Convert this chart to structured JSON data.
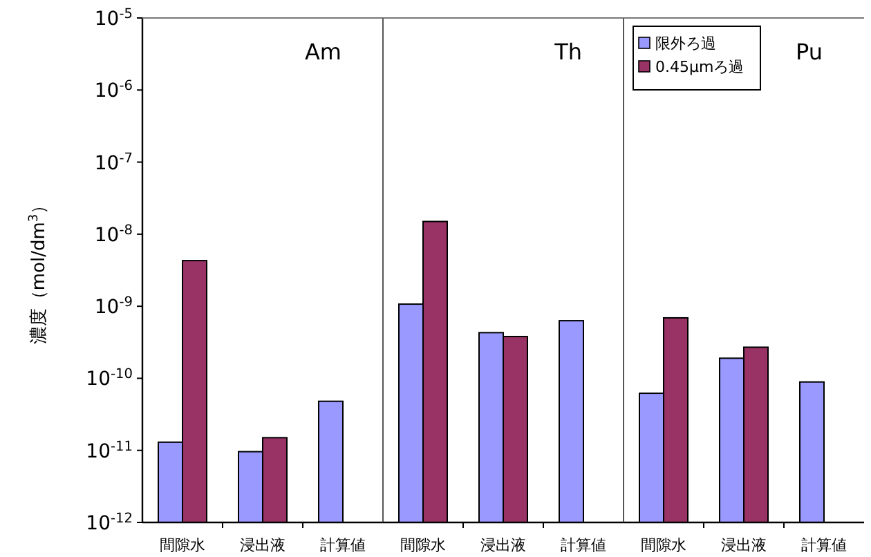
{
  "chart_data": [
    {
      "type": "bar",
      "title": "Am",
      "categories": [
        "間隙水",
        "浸出液",
        "計算値"
      ],
      "ylabel": "濃度（mol/dm$^{3}$）",
      "log": true,
      "ylim": [
        1e-12,
        1e-05
      ],
      "yticks": [
        {
          "value": 1e-12,
          "label": "10$^{-12}$"
        },
        {
          "value": 1e-11,
          "label": "10$^{-11}$"
        },
        {
          "value": 1e-10,
          "label": "10$^{-10}$"
        },
        {
          "value": 1e-09,
          "label": "10$^{-9}$"
        },
        {
          "value": 1e-08,
          "label": "10$^{-8}$"
        },
        {
          "value": 1e-07,
          "label": "10$^{-7}$"
        },
        {
          "value": 1e-06,
          "label": "10$^{-6}$"
        },
        {
          "value": 1e-05,
          "label": "10$^{-5}$"
        }
      ],
      "series": [
        {
          "color": "#9999ff",
          "values": [
            1.3e-11,
            9.6e-12,
            4.8e-11
          ]
        },
        {
          "color": "#993366",
          "values": [
            4.3e-09,
            1.5e-11,
            null
          ]
        }
      ]
    },
    {
      "type": "bar",
      "title": "Th",
      "categories": [
        "間隙水",
        "浸出液",
        "計算値"
      ],
      "log": true,
      "ylim": [
        1e-12,
        1e-05
      ],
      "tick_labels": "x",
      "series": [
        {
          "color": "#9999ff",
          "values": [
            1.07e-09,
            4.3e-10,
            6.3e-10
          ]
        },
        {
          "color": "#993366",
          "values": [
            1.5e-08,
            3.8e-10,
            null
          ]
        }
      ]
    },
    {
      "type": "bar",
      "title": "Pu",
      "categories": [
        "間隙水",
        "浸出液",
        "計算値"
      ],
      "log": true,
      "ylim": [
        1e-12,
        1e-05
      ],
      "tick_labels": "x",
      "legend": "top left",
      "series": [
        {
          "name": "限外ろ過",
          "color": "#9999ff",
          "values": [
            6.2e-11,
            1.9e-10,
            8.9e-11
          ]
        },
        {
          "name": "0.45μmろ過",
          "color": "#993366",
          "values": [
            6.9e-10,
            2.7e-10,
            null
          ]
        }
      ]
    }
  ]
}
